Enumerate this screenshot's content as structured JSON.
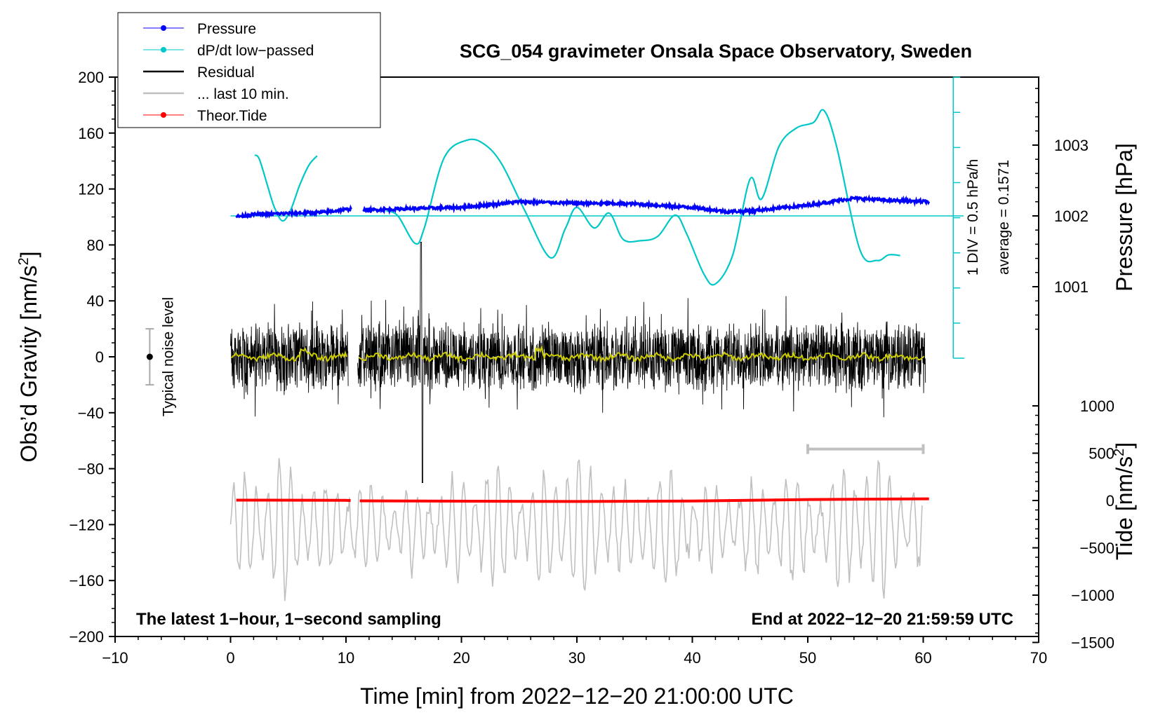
{
  "chart_data": {
    "type": "line",
    "title": "SCG_054 gravimeter Onsala Space Observatory, Sweden",
    "xlabel": "Time [min] from 2022−12−20 21:00:00 UTC",
    "ylabel": "Obs’d Gravity [nm/s",
    "ylabel_sup": "2",
    "ylabel_close": "]",
    "xlim": [
      -10,
      70
    ],
    "ylim": [
      -200,
      200
    ],
    "x_ticks": [
      -10,
      0,
      10,
      20,
      30,
      40,
      50,
      60,
      70
    ],
    "x_tick_labels": [
      "−10",
      "0",
      "10",
      "20",
      "30",
      "40",
      "50",
      "60",
      "70"
    ],
    "y_ticks": [
      -200,
      -160,
      -120,
      -80,
      -40,
      0,
      40,
      80,
      120,
      160,
      200
    ],
    "y_tick_labels": [
      "−200",
      "−160",
      "−120",
      "−80",
      "−40",
      "0",
      "40",
      "80",
      "120",
      "160",
      "200"
    ],
    "right_pressure_axis": {
      "label": "Pressure [hPa]",
      "ticks": [
        1001,
        1002,
        1003
      ],
      "tick_labels": [
        "1001",
        "1002",
        "1003"
      ]
    },
    "right_tide_axis": {
      "label": "Tide [nm/s",
      "label_sup": "2",
      "label_close": "]",
      "ticks": [
        -1500,
        -1000,
        -500,
        0,
        500,
        1000
      ],
      "tick_labels": [
        "−1500",
        "−1000",
        "−500",
        "0",
        "500",
        "1000"
      ]
    },
    "dpdt_scale": {
      "label_div": "1 DIV = 0.5 hPa/h",
      "label_avg": "average = 0.1571"
    },
    "noise_label": "Typical noise level",
    "note_left": "The latest 1−hour, 1−second sampling",
    "note_right": "End at 2022−12−20 21:59:59 UTC",
    "legend": [
      {
        "label": "Pressure",
        "color": "#0000ff",
        "marker": true
      },
      {
        "label": "dP/dt low−passed",
        "color": "#00c8c8",
        "marker": true
      },
      {
        "label": "Residual",
        "color": "#000000",
        "marker": false
      },
      {
        "label": "... last 10 min.",
        "color": "#c0c0c0",
        "marker": false
      },
      {
        "label": "Theor.Tide",
        "color": "#ff0000",
        "marker": true
      }
    ],
    "series": [
      {
        "name": "Pressure",
        "color": "#0000ff",
        "unit": "hPa",
        "x": [
          0.5,
          2,
          4,
          6,
          8,
          10.5,
          11.5,
          15,
          20,
          25,
          30,
          35,
          40,
          43,
          45,
          50,
          54,
          57,
          60.5
        ],
        "values": [
          1001.99,
          1002.02,
          1002.03,
          1002.04,
          1002.05,
          1002.1,
          1002.08,
          1002.1,
          1002.12,
          1002.2,
          1002.18,
          1002.17,
          1002.12,
          1002.06,
          1002.07,
          1002.15,
          1002.25,
          1002.22,
          1002.2
        ]
      },
      {
        "name": "dP/dt low−passed",
        "color": "#00c8c8",
        "unit": "hPa/h",
        "x": [
          2.1,
          2.5,
          3.2,
          3.8,
          4.5,
          5.2,
          6.0,
          6.8,
          7.5,
          null,
          13.5,
          14.5,
          16.0,
          16.8,
          18.5,
          20.5,
          22.0,
          23.5,
          25.5,
          27.7,
          29.0,
          30.0,
          31.5,
          32.8,
          34.0,
          35.5,
          37.0,
          38.5,
          39.5,
          41.0,
          42.0,
          43.5,
          45.0,
          46.0,
          47.5,
          49.0,
          50.5,
          51.4,
          52.5,
          54.5,
          56.0,
          57.0,
          58.0
        ],
        "values": [
          0.86,
          0.8,
          0.43,
          0.12,
          -0.07,
          0.08,
          0.44,
          0.72,
          0.85,
          null,
          0.07,
          0.0,
          -0.39,
          -0.16,
          0.82,
          1.07,
          1.01,
          0.73,
          0.07,
          -0.59,
          -0.18,
          0.12,
          -0.17,
          0.04,
          -0.33,
          -0.35,
          -0.29,
          0.01,
          -0.25,
          -0.82,
          -0.96,
          -0.55,
          0.52,
          0.24,
          0.98,
          1.24,
          1.32,
          1.49,
          0.98,
          -0.47,
          -0.63,
          -0.55,
          -0.56
        ]
      },
      {
        "name": "Residual",
        "color": "#000000",
        "unit": "nm/s2",
        "x_ranges": [
          [
            0,
            10.2
          ],
          [
            11,
            60.2
          ]
        ],
        "amplitude_typical": 35,
        "spike": {
          "x": 16.5,
          "max": 82,
          "min": -90
        }
      },
      {
        "name": "Residual smoothed",
        "color": "#cccc00",
        "unit": "nm/s2",
        "value_typical": 0
      },
      {
        "name": "... last 10 min.",
        "color": "#c0c0c0",
        "unit": "nm/s2",
        "x_range": [
          0,
          60
        ],
        "center": -122,
        "amplitude_typical": 40,
        "bar": {
          "x_start": 50,
          "x_end": 60,
          "y": -66
        }
      },
      {
        "name": "Theor.Tide",
        "color": "#ff0000",
        "unit": "nm/s2",
        "x": [
          0.5,
          10,
          11,
          30,
          40,
          50,
          60.5
        ],
        "values": [
          4,
          2,
          -4,
          -10,
          -6,
          10,
          18
        ]
      }
    ]
  }
}
